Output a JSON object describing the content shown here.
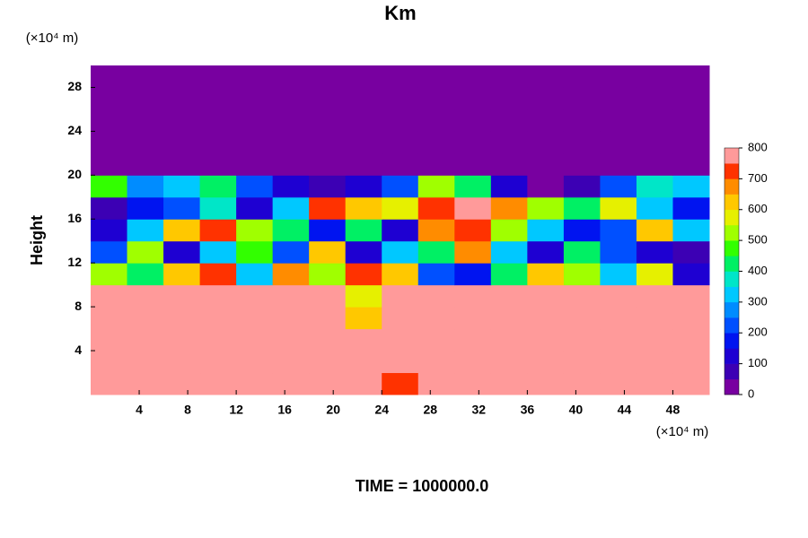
{
  "chart_data": {
    "type": "heatmap",
    "title": "Km",
    "ylabel": "Height",
    "yunit": "(×10⁴ m)",
    "xunit": "(×10⁴ m)",
    "footer": "TIME = 1000000.0",
    "xlim": [
      0,
      51
    ],
    "ylim": [
      0,
      30
    ],
    "xticks": [
      4,
      8,
      12,
      16,
      20,
      24,
      28,
      32,
      36,
      40,
      44,
      48
    ],
    "yticks": [
      4,
      8,
      12,
      16,
      20,
      24,
      28
    ],
    "xbins": [
      0,
      3,
      6,
      9,
      12,
      15,
      18,
      21,
      24,
      27,
      30,
      33,
      36,
      39,
      42,
      45,
      48,
      51
    ],
    "ybins": [
      0,
      2,
      4,
      6,
      8,
      10,
      12,
      14,
      16,
      18,
      20,
      22,
      24,
      26,
      28,
      30
    ],
    "z": [
      [
        800,
        800,
        800,
        800,
        800,
        800,
        800,
        800,
        700,
        800,
        800,
        800,
        800,
        800,
        800,
        800,
        800
      ],
      [
        800,
        800,
        800,
        800,
        800,
        800,
        800,
        800,
        800,
        800,
        800,
        800,
        750,
        800,
        800,
        800,
        800
      ],
      [
        750,
        800,
        800,
        800,
        800,
        800,
        800,
        800,
        800,
        800,
        800,
        800,
        800,
        750,
        800,
        800,
        800
      ],
      [
        800,
        800,
        800,
        800,
        800,
        800,
        800,
        600,
        800,
        800,
        800,
        800,
        800,
        800,
        750,
        800,
        800
      ],
      [
        750,
        800,
        800,
        800,
        800,
        800,
        800,
        550,
        800,
        800,
        800,
        800,
        800,
        800,
        750,
        800,
        800
      ],
      [
        500,
        400,
        600,
        700,
        300,
        650,
        500,
        700,
        600,
        200,
        150,
        400,
        600,
        500,
        300,
        550,
        100
      ],
      [
        200,
        500,
        100,
        300,
        450,
        200,
        600,
        100,
        300,
        400,
        650,
        300,
        100,
        400,
        200,
        100,
        50
      ],
      [
        100,
        300,
        600,
        700,
        500,
        400,
        150,
        400,
        100,
        650,
        700,
        500,
        300,
        150,
        200,
        600,
        300
      ],
      [
        50,
        150,
        200,
        350,
        100,
        300,
        700,
        600,
        550,
        700,
        800,
        650,
        500,
        400,
        550,
        300,
        150
      ],
      [
        450,
        250,
        300,
        400,
        200,
        100,
        50,
        100,
        200,
        500,
        400,
        100,
        0,
        50,
        200,
        350,
        300
      ],
      [
        0,
        0,
        0,
        0,
        0,
        0,
        0,
        0,
        0,
        0,
        0,
        0,
        0,
        0,
        0,
        0,
        0
      ],
      [
        0,
        0,
        0,
        0,
        0,
        0,
        0,
        0,
        0,
        0,
        0,
        0,
        0,
        0,
        0,
        0,
        0
      ],
      [
        0,
        0,
        0,
        0,
        0,
        0,
        0,
        0,
        0,
        0,
        0,
        0,
        0,
        0,
        0,
        0,
        0
      ],
      [
        0,
        0,
        0,
        0,
        0,
        0,
        0,
        0,
        0,
        0,
        0,
        0,
        0,
        0,
        0,
        0,
        0
      ],
      [
        0,
        0,
        0,
        0,
        0,
        0,
        0,
        0,
        0,
        0,
        0,
        0,
        0,
        0,
        0,
        0,
        0
      ]
    ],
    "clim": [
      0,
      800
    ],
    "level_step": 50,
    "colorbar_ticks": [
      0,
      100,
      200,
      300,
      400,
      500,
      600,
      700,
      800
    ],
    "colors": [
      "#7800a0",
      "#3c00b4",
      "#1e00d2",
      "#0014f0",
      "#0050ff",
      "#008cff",
      "#00c8ff",
      "#00e6c8",
      "#00f064",
      "#32ff00",
      "#a0ff00",
      "#e6f000",
      "#ffc800",
      "#ff8c00",
      "#ff3200",
      "#ff9a9a"
    ]
  }
}
